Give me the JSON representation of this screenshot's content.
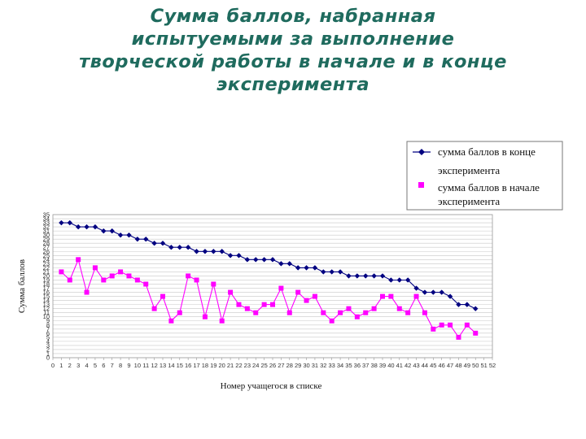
{
  "slide": {
    "title": "Сумма баллов, набранная испытуемыми за выполнение творческой работы в начале и в конце эксперимента"
  },
  "chart_data": {
    "type": "line",
    "title": "",
    "xlabel": "Номер учащегося в списке",
    "ylabel": "Сумма баллов",
    "x": [
      0,
      1,
      2,
      3,
      4,
      5,
      6,
      7,
      8,
      9,
      10,
      11,
      12,
      13,
      14,
      15,
      16,
      17,
      18,
      19,
      20,
      21,
      22,
      23,
      24,
      25,
      26,
      27,
      28,
      29,
      30,
      31,
      32,
      33,
      34,
      35,
      36,
      37,
      38,
      39,
      40,
      41,
      42,
      43,
      44,
      45,
      46,
      47,
      48,
      49,
      50,
      51,
      52
    ],
    "xlim": [
      0,
      52
    ],
    "ylim": [
      0,
      35
    ],
    "yticks": [
      0,
      1,
      2,
      3,
      4,
      5,
      6,
      7,
      8,
      9,
      10,
      11,
      12,
      13,
      14,
      15,
      16,
      17,
      18,
      19,
      20,
      21,
      22,
      23,
      24,
      25,
      26,
      27,
      28,
      29,
      30,
      31,
      32,
      33,
      34,
      35
    ],
    "grid": true,
    "legend_position": "top-right",
    "series": [
      {
        "name": "сумма баллов в конце эксперимента",
        "color": "#000080",
        "marker": "diamond",
        "x": [
          1,
          2,
          3,
          4,
          5,
          6,
          7,
          8,
          9,
          10,
          11,
          12,
          13,
          14,
          15,
          16,
          17,
          18,
          19,
          20,
          21,
          22,
          23,
          24,
          25,
          26,
          27,
          28,
          29,
          30,
          31,
          32,
          33,
          34,
          35,
          36,
          37,
          38,
          39,
          40,
          41,
          42,
          43,
          44,
          45,
          46,
          47,
          48,
          49,
          50
        ],
        "values": [
          33,
          33,
          32,
          32,
          32,
          31,
          31,
          30,
          30,
          29,
          29,
          28,
          28,
          27,
          27,
          27,
          26,
          26,
          26,
          26,
          25,
          25,
          24,
          24,
          24,
          24,
          23,
          23,
          22,
          22,
          22,
          21,
          21,
          21,
          20,
          20,
          20,
          20,
          20,
          19,
          19,
          19,
          17,
          16,
          16,
          16,
          15,
          13,
          13,
          12
        ]
      },
      {
        "name": "сумма баллов в начале эксперимента",
        "color": "#ff00ff",
        "marker": "square",
        "x": [
          1,
          2,
          3,
          4,
          5,
          6,
          7,
          8,
          9,
          10,
          11,
          12,
          13,
          14,
          15,
          16,
          17,
          18,
          19,
          20,
          21,
          22,
          23,
          24,
          25,
          26,
          27,
          28,
          29,
          30,
          31,
          32,
          33,
          34,
          35,
          36,
          37,
          38,
          39,
          40,
          41,
          42,
          43,
          44,
          45,
          46,
          47,
          48,
          49,
          50
        ],
        "values": [
          21,
          19,
          24,
          16,
          22,
          19,
          20,
          21,
          20,
          19,
          18,
          12,
          15,
          9,
          11,
          20,
          19,
          10,
          18,
          9,
          16,
          13,
          12,
          11,
          13,
          13,
          17,
          11,
          16,
          14,
          15,
          11,
          9,
          11,
          12,
          10,
          11,
          12,
          15,
          15,
          12,
          11,
          15,
          11,
          7,
          8,
          8,
          5,
          8,
          6
        ]
      }
    ]
  }
}
